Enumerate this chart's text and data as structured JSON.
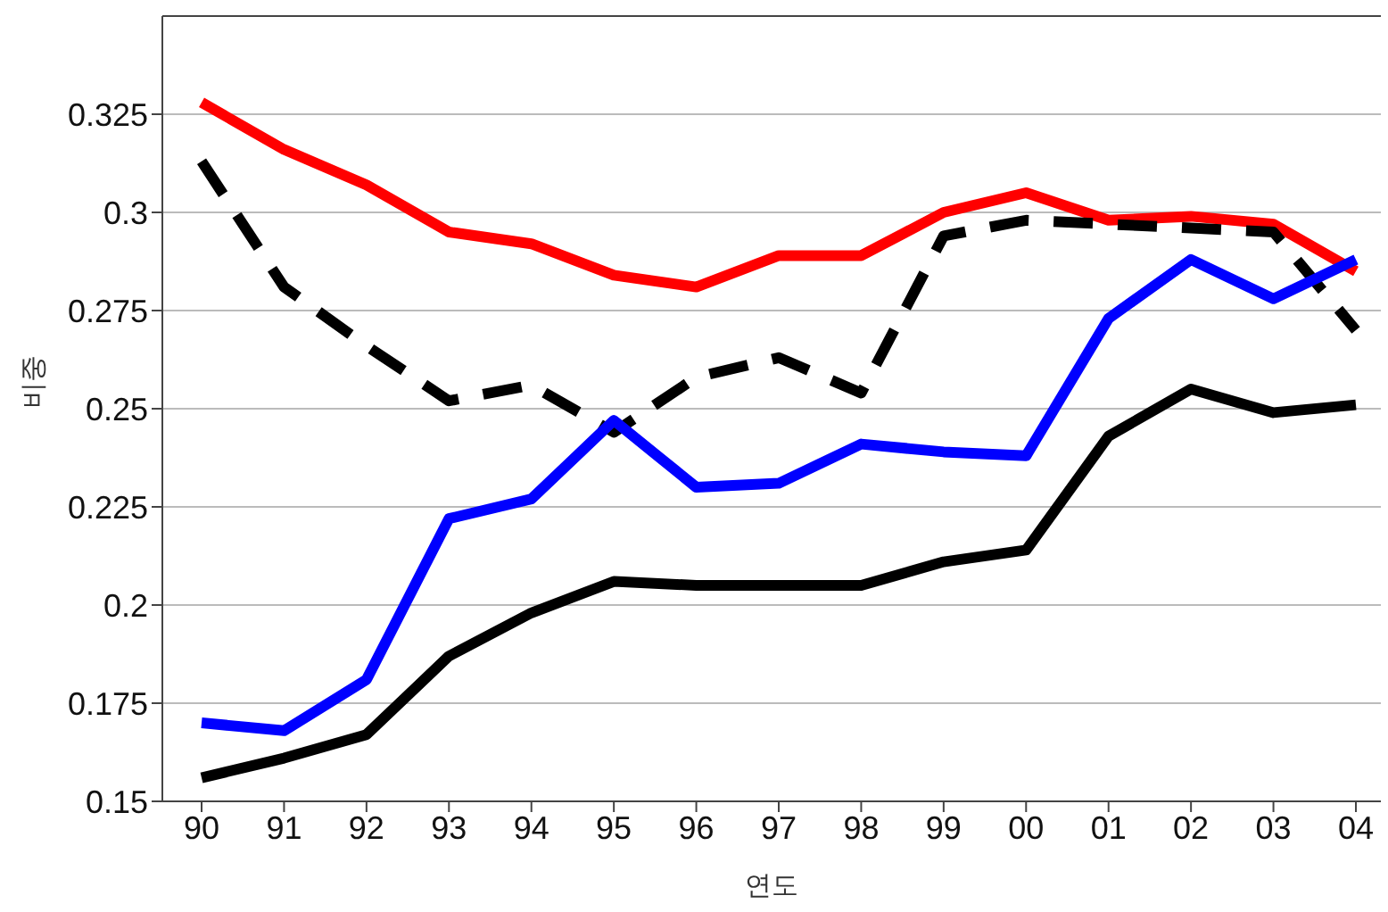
{
  "chart_data": {
    "type": "line",
    "xlabel": "연도",
    "ylabel": "비중",
    "categories": [
      "90",
      "91",
      "92",
      "93",
      "94",
      "95",
      "96",
      "97",
      "98",
      "99",
      "00",
      "01",
      "02",
      "03",
      "04"
    ],
    "series": [
      {
        "color": "#ff0000",
        "line_style": "solid",
        "values": [
          0.328,
          0.316,
          0.307,
          0.295,
          0.292,
          0.284,
          0.281,
          0.289,
          0.289,
          0.3,
          0.305,
          0.298,
          0.299,
          0.297,
          0.285
        ]
      },
      {
        "color": "#000000",
        "line_style": "dashed",
        "values": [
          0.313,
          0.281,
          0.266,
          0.252,
          0.256,
          0.244,
          0.258,
          0.263,
          0.254,
          0.294,
          0.298,
          0.297,
          0.296,
          0.295,
          0.27
        ]
      },
      {
        "color": "#0000ff",
        "line_style": "solid",
        "values": [
          0.17,
          0.168,
          0.181,
          0.222,
          0.227,
          0.247,
          0.23,
          0.231,
          0.241,
          0.239,
          0.238,
          0.273,
          0.288,
          0.278,
          0.288
        ]
      },
      {
        "color": "#000000",
        "line_style": "solid",
        "values": [
          0.156,
          0.161,
          0.167,
          0.187,
          0.198,
          0.206,
          0.205,
          0.205,
          0.205,
          0.211,
          0.214,
          0.243,
          0.255,
          0.249,
          0.251
        ]
      }
    ],
    "ylim": [
      0.15,
      0.35
    ],
    "yticks": [
      0.15,
      0.175,
      0.2,
      0.225,
      0.25,
      0.275,
      0.3,
      0.325
    ],
    "grid": "y",
    "marker": "none",
    "legend": false
  }
}
